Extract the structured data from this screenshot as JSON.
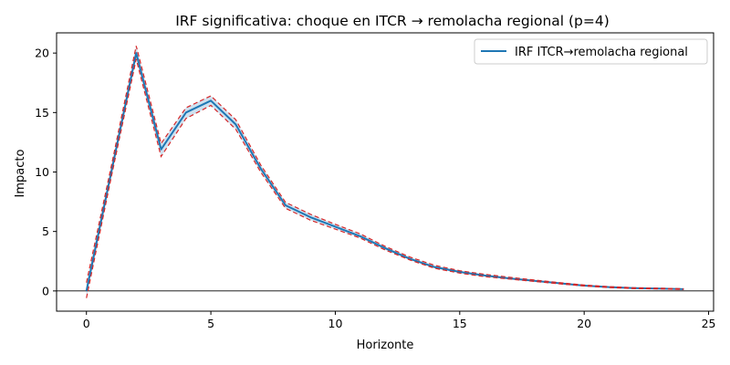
{
  "chart_data": {
    "type": "line",
    "title": "IRF significativa: choque en ITCR → remolacha regional (p=4)",
    "xlabel": "Horizonte",
    "ylabel": "Impacto",
    "xlim": [
      -1.2,
      25.2
    ],
    "ylim": [
      -1.7,
      21.7
    ],
    "xticks": [
      0,
      5,
      10,
      15,
      20,
      25
    ],
    "yticks": [
      0,
      5,
      10,
      15,
      20
    ],
    "zero_line": true,
    "grid": false,
    "legend_position": "top-right",
    "x": [
      0,
      1,
      2,
      3,
      4,
      5,
      6,
      7,
      8,
      9,
      10,
      11,
      12,
      13,
      14,
      15,
      16,
      17,
      18,
      19,
      20,
      21,
      22,
      23,
      24
    ],
    "series": [
      {
        "name": "IRF ITCR→remolacha regional",
        "color": "#1f77b4",
        "values": [
          0.0,
          10.0,
          20.0,
          11.9,
          15.0,
          16.0,
          14.0,
          10.3,
          7.2,
          6.2,
          5.4,
          4.6,
          3.6,
          2.7,
          2.0,
          1.6,
          1.3,
          1.05,
          0.85,
          0.65,
          0.45,
          0.32,
          0.24,
          0.2,
          0.15
        ]
      }
    ],
    "band": {
      "color": "#d62728",
      "lower": [
        -0.6,
        9.6,
        19.5,
        11.3,
        14.5,
        15.6,
        13.6,
        10.0,
        6.95,
        5.95,
        5.2,
        4.45,
        3.45,
        2.6,
        1.9,
        1.5,
        1.2,
        1.0,
        0.8,
        0.6,
        0.42,
        0.28,
        0.2,
        0.17,
        0.12
      ],
      "upper": [
        0.7,
        10.5,
        20.6,
        12.4,
        15.4,
        16.4,
        14.4,
        10.6,
        7.45,
        6.45,
        5.6,
        4.8,
        3.75,
        2.85,
        2.15,
        1.7,
        1.4,
        1.15,
        0.92,
        0.7,
        0.5,
        0.36,
        0.27,
        0.23,
        0.18
      ]
    }
  }
}
